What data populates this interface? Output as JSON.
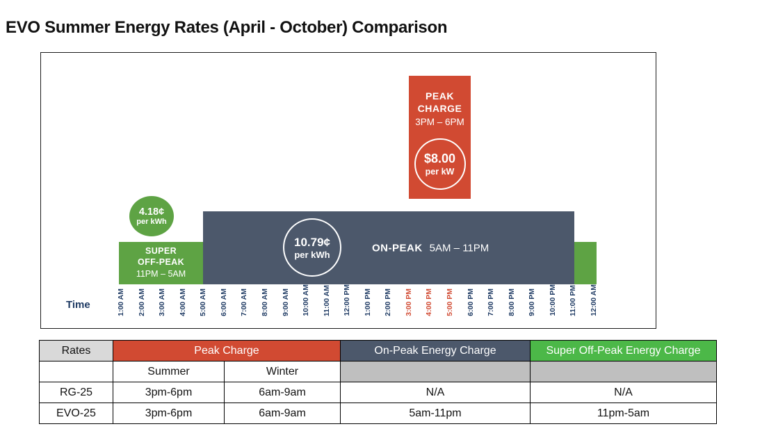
{
  "page_title": "EVO Summer Energy Rates (April - October) Comparison",
  "colors": {
    "red": "#D14A32",
    "chart_green": "#5EA344",
    "table_green": "#4CB848",
    "slate": "#4C586B",
    "navy": "#1E3A63",
    "gray_header": "#D9D9D9",
    "gray_cell": "#BFBFBF"
  },
  "chart": {
    "time_label": "Time",
    "ticks": [
      {
        "label": "1:00 AM",
        "highlight": false
      },
      {
        "label": "2:00 AM",
        "highlight": false
      },
      {
        "label": "3:00 AM",
        "highlight": false
      },
      {
        "label": "4:00 AM",
        "highlight": false
      },
      {
        "label": "5:00 AM",
        "highlight": false
      },
      {
        "label": "6:00 AM",
        "highlight": false
      },
      {
        "label": "7:00 AM",
        "highlight": false
      },
      {
        "label": "8:00 AM",
        "highlight": false
      },
      {
        "label": "9:00 AM",
        "highlight": false
      },
      {
        "label": "10:00 AM",
        "highlight": false
      },
      {
        "label": "11:00 AM",
        "highlight": false
      },
      {
        "label": "12:00 PM",
        "highlight": false
      },
      {
        "label": "1:00 PM",
        "highlight": false
      },
      {
        "label": "2:00 PM",
        "highlight": false
      },
      {
        "label": "3:00 PM",
        "highlight": true
      },
      {
        "label": "4:00 PM",
        "highlight": true
      },
      {
        "label": "5:00 PM",
        "highlight": true
      },
      {
        "label": "6:00 PM",
        "highlight": false
      },
      {
        "label": "7:00 PM",
        "highlight": false
      },
      {
        "label": "8:00 PM",
        "highlight": false
      },
      {
        "label": "9:00 PM",
        "highlight": false
      },
      {
        "label": "10:00 PM",
        "highlight": false
      },
      {
        "label": "11:00 PM",
        "highlight": false
      },
      {
        "label": "12:00 AM",
        "highlight": false
      }
    ],
    "peak": {
      "line1": "PEAK",
      "line2": "CHARGE",
      "hours": "3PM – 6PM",
      "price": "$8.00",
      "unit": "per kW"
    },
    "super_offpeak": {
      "line1": "SUPER",
      "line2": "OFF-PEAK",
      "hours": "11PM – 5AM",
      "rate": "4.18¢",
      "unit": "per kWh"
    },
    "onpeak": {
      "name": "ON-PEAK",
      "hours": "5AM – 11PM",
      "rate": "10.79¢",
      "unit": "per kWh"
    }
  },
  "chart_data": {
    "type": "bar",
    "title": "EVO Summer Energy Rates (April - October) Comparison",
    "xlabel": "Time",
    "x": [
      "1:00 AM",
      "2:00 AM",
      "3:00 AM",
      "4:00 AM",
      "5:00 AM",
      "6:00 AM",
      "7:00 AM",
      "8:00 AM",
      "9:00 AM",
      "10:00 AM",
      "11:00 AM",
      "12:00 PM",
      "1:00 PM",
      "2:00 PM",
      "3:00 PM",
      "4:00 PM",
      "5:00 PM",
      "6:00 PM",
      "7:00 PM",
      "8:00 PM",
      "9:00 PM",
      "10:00 PM",
      "11:00 PM",
      "12:00 AM"
    ],
    "highlighted_x": [
      "3:00 PM",
      "4:00 PM",
      "5:00 PM"
    ],
    "series": [
      {
        "name": "Super Off-Peak",
        "period": "11PM – 5AM",
        "rate_value": 4.18,
        "rate_unit": "¢ per kWh",
        "x_span": [
          "11:00 PM",
          "5:00 AM"
        ],
        "color": "#5EA344",
        "bar_height": "low"
      },
      {
        "name": "On-Peak",
        "period": "5AM – 11PM",
        "rate_value": 10.79,
        "rate_unit": "¢ per kWh",
        "x_span": [
          "5:00 AM",
          "11:00 PM"
        ],
        "color": "#4C586B",
        "bar_height": "medium"
      },
      {
        "name": "Peak Charge",
        "period": "3PM – 6PM",
        "rate_value": 8.0,
        "rate_unit": "$ per kW",
        "x_span": [
          "3:00 PM",
          "6:00 PM"
        ],
        "color": "#D14A32",
        "bar_height": "high"
      }
    ]
  },
  "table": {
    "col1_header": "Rates",
    "group_headers": [
      "Peak Charge",
      "On-Peak Energy Charge",
      "Super Off-Peak Energy Charge"
    ],
    "sub_headers": [
      "Summer",
      "Winter"
    ],
    "rows": [
      {
        "rate": "RG-25",
        "summer": "3pm-6pm",
        "winter": "6am-9am",
        "onpeak": "N/A",
        "super_offpeak": "N/A"
      },
      {
        "rate": "EVO-25",
        "summer": "3pm-6pm",
        "winter": "6am-9am",
        "onpeak": "5am-11pm",
        "super_offpeak": "11pm-5am"
      }
    ]
  }
}
